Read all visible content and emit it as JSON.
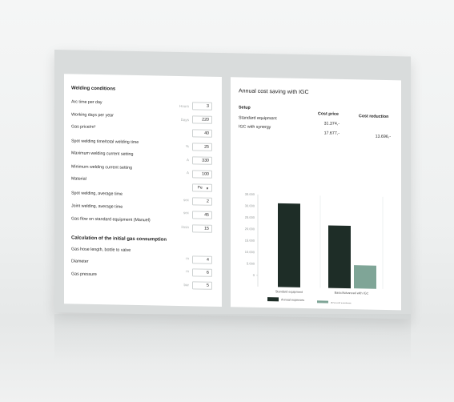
{
  "left_panel": {
    "section1_title": "Welding conditions",
    "rows": [
      {
        "label": "Arc time per day",
        "unit": "Hours",
        "value": "3"
      },
      {
        "label": "Working days per year",
        "unit": "Days",
        "value": "220"
      },
      {
        "label": "Gas price/m³",
        "unit": "",
        "value": "40"
      },
      {
        "label": "Spot welding time/total welding time",
        "unit": "%",
        "value": "25"
      },
      {
        "label": "Maximum welding current setting",
        "unit": "A",
        "value": "330"
      },
      {
        "label": "Minimum welding current setting",
        "unit": "A",
        "value": "100"
      },
      {
        "label": "Material",
        "unit": "",
        "value": "Fe",
        "select": true
      },
      {
        "label": "Spot welding, average time",
        "unit": "sec",
        "value": "2"
      },
      {
        "label": "Joint welding, average time",
        "unit": "sec",
        "value": "45"
      },
      {
        "label": "Gas flow on standard equipment (Manuel)",
        "unit": "l/min",
        "value": "15"
      }
    ],
    "section2_title": "Calculation of the initial gas consumption",
    "rows2": [
      {
        "label": "Gas hose length, bottle to valve",
        "unit": "",
        "value": ""
      },
      {
        "label": "Diameter",
        "unit": "m",
        "value": "4"
      },
      {
        "label": "Gas pressure",
        "unit": "m",
        "value": "6"
      },
      {
        "label": "",
        "unit": "bar",
        "value": "5"
      }
    ]
  },
  "right_panel": {
    "title": "Annual cost saving with IGC",
    "col_setup": "Setup",
    "col_cost": "Cost price",
    "col_reduction": "Cost reduction",
    "rows": [
      {
        "setup": "Standard equipment",
        "cost": "31.374,-",
        "reduction": ""
      },
      {
        "setup": "IGC with synergy",
        "cost": "17.677,-",
        "reduction": "13.696,-"
      }
    ]
  },
  "colors": {
    "expenses": "#1e2d27",
    "savings": "#7fa597"
  },
  "chart_data": {
    "type": "bar",
    "categories": [
      "Standard equipment",
      "Basic/Advanced with IGC"
    ],
    "series": [
      {
        "name": "Annual expenses",
        "values": [
          31374,
          22200
        ]
      },
      {
        "name": "Annual savings",
        "values": [
          0,
          5200
        ]
      }
    ],
    "yticks": [
      "35.000",
      "30.000",
      "25.000",
      "20.000",
      "15.000",
      "10.000",
      "5.000",
      "0"
    ],
    "ylim": [
      0,
      35000
    ],
    "grid": true,
    "legend_position": "bottom"
  }
}
